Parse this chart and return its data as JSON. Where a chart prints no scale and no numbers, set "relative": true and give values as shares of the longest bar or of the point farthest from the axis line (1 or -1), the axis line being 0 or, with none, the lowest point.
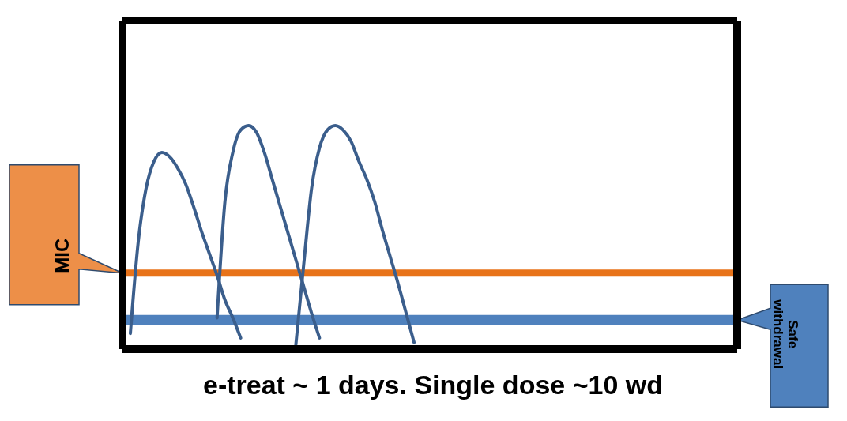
{
  "chart_data": {
    "type": "line",
    "relative": true,
    "title": "e-treat ~ 1 days. Single dose ~10 wd",
    "marker": "none",
    "categories": [
      null,
      null,
      null,
      null,
      null,
      null,
      null,
      null,
      null,
      null,
      null,
      null,
      null,
      null,
      null,
      null,
      null,
      null,
      null,
      null,
      null,
      null,
      null,
      null,
      null,
      null,
      null,
      null,
      null,
      null,
      null,
      null,
      null,
      null,
      null,
      null,
      null,
      null,
      null,
      null,
      null,
      null,
      null,
      null,
      null,
      null,
      null,
      null,
      null,
      null,
      null,
      null,
      null,
      null,
      null,
      null,
      null,
      null,
      null,
      null,
      null,
      null,
      null,
      null,
      null,
      null,
      null,
      null,
      null,
      null,
      null,
      null,
      null,
      null,
      null,
      null,
      null,
      null,
      null
    ],
    "series": [
      {
        "color": "#3b5e8c",
        "values": [
          null,
          0.07,
          0.48,
          0.72,
          0.84,
          0.88,
          0.86,
          0.81,
          0.74,
          0.64,
          0.53,
          0.43,
          0.33,
          0.22,
          0.14,
          0.05,
          null,
          null,
          null,
          null,
          null,
          null,
          null,
          null,
          null,
          null,
          null,
          null,
          null,
          null,
          null,
          null,
          null,
          null,
          null,
          null,
          null,
          null,
          null,
          null,
          null,
          null,
          null,
          null,
          null,
          null,
          null,
          null,
          null,
          null,
          null,
          null,
          null,
          null,
          null,
          null,
          null,
          null,
          null,
          null,
          null,
          null,
          null,
          null,
          null,
          null,
          null,
          null,
          null,
          null,
          null,
          null,
          null,
          null,
          null,
          null,
          null,
          null,
          null
        ]
      },
      {
        "color": "#3b5e8c",
        "values": [
          null,
          null,
          null,
          null,
          null,
          null,
          null,
          null,
          null,
          null,
          null,
          null,
          0.14,
          0.66,
          0.88,
          0.98,
          1,
          0.97,
          0.88,
          0.76,
          0.64,
          0.52,
          0.4,
          0.28,
          0.16,
          0.05,
          null,
          null,
          null,
          null,
          null,
          null,
          null,
          null,
          null,
          null,
          null,
          null,
          null,
          null,
          null,
          null,
          null,
          null,
          null,
          null,
          null,
          null,
          null,
          null,
          null,
          null,
          null,
          null,
          null,
          null,
          null,
          null,
          null,
          null,
          null,
          null,
          null,
          null,
          null,
          null,
          null,
          null,
          null,
          null,
          null,
          null,
          null,
          null,
          null,
          null,
          null,
          null,
          null
        ]
      },
      {
        "color": "#3b5e8c",
        "values": [
          null,
          null,
          null,
          null,
          null,
          null,
          null,
          null,
          null,
          null,
          null,
          null,
          null,
          null,
          null,
          null,
          null,
          null,
          null,
          null,
          null,
          null,
          0.02,
          0.38,
          0.72,
          0.9,
          0.98,
          1,
          0.98,
          0.93,
          0.84,
          0.76,
          0.66,
          0.53,
          0.41,
          0.29,
          0.16,
          0.03,
          null,
          null,
          null,
          null,
          null,
          null,
          null,
          null,
          null,
          null,
          null,
          null,
          null,
          null,
          null,
          null,
          null,
          null,
          null,
          null,
          null,
          null,
          null,
          null,
          null,
          null,
          null,
          null,
          null,
          null,
          null,
          null,
          null,
          null,
          null,
          null,
          null,
          null,
          null,
          null,
          null
        ]
      }
    ],
    "ref_lines": [
      {
        "axis": "y",
        "value": 0.34,
        "label": "MIC",
        "color": "#e8731a"
      },
      {
        "axis": "y",
        "value": 0.13,
        "label": "Safe withdrawal",
        "color": "#4f81bd"
      }
    ]
  }
}
